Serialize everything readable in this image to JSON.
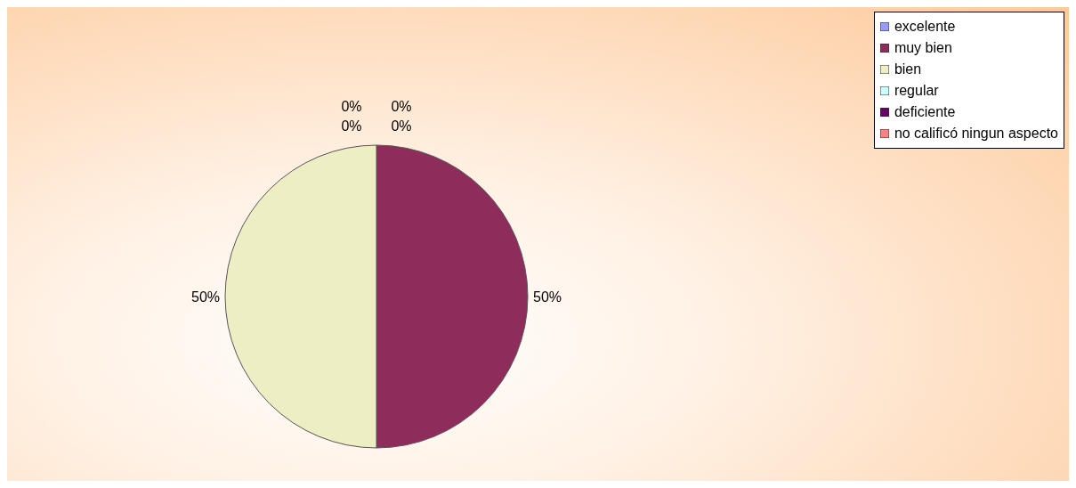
{
  "chart_data": {
    "type": "pie",
    "categories": [
      "excelente",
      "muy bien",
      "bien",
      "regular",
      "deficiente",
      "no calificó ningun aspecto"
    ],
    "values": [
      0,
      50,
      50,
      0,
      0,
      0
    ],
    "colors": [
      "#9999ff",
      "#8e2d5c",
      "#eeeec4",
      "#ccffff",
      "#660066",
      "#ff8080"
    ],
    "value_labels": [
      "0%",
      "50%",
      "50%",
      "0%",
      "0%",
      "0%"
    ],
    "legend": "top right"
  }
}
